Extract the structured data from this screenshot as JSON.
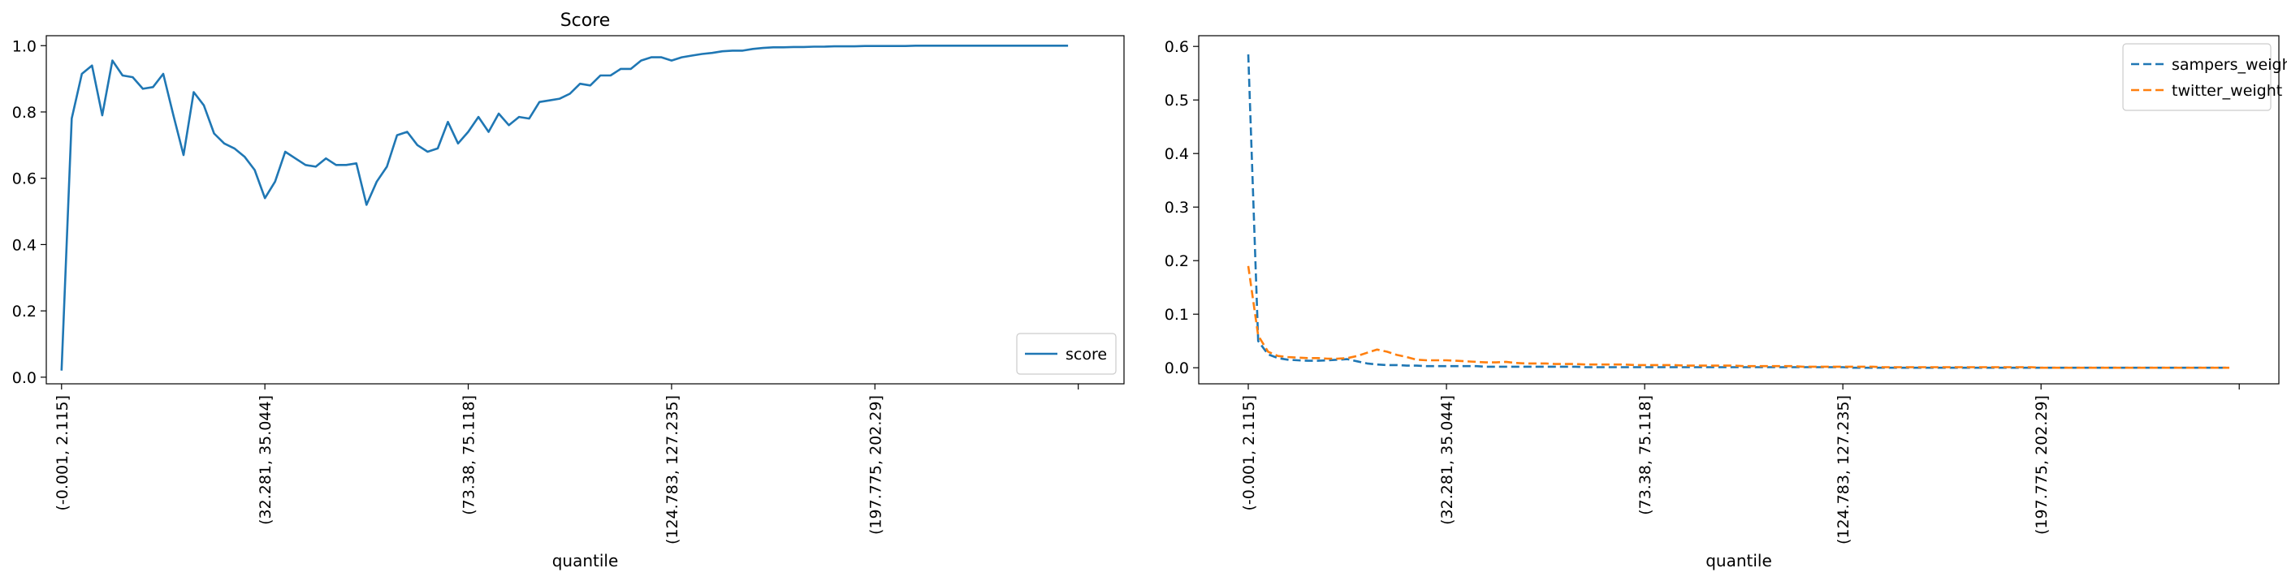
{
  "chart_data": [
    {
      "type": "line",
      "title": "Score",
      "xlabel": "quantile",
      "ylabel": "",
      "ylim": [
        -0.02,
        1.03
      ],
      "yticks": [
        0.0,
        0.2,
        0.4,
        0.6,
        0.8,
        1.0
      ],
      "ytick_labels": [
        "0.0",
        "0.2",
        "0.4",
        "0.6",
        "0.8",
        "1.0"
      ],
      "xtick_labels": [
        "(-0.001, 2.115]",
        "(32.281, 35.044]",
        "(73.38, 75.118]",
        "(124.783, 127.235]",
        "(197.775, 202.29]",
        ""
      ],
      "xtick_positions": [
        0,
        20,
        40,
        60,
        80,
        100
      ],
      "x_range": [
        -1.5,
        104.5
      ],
      "legend": "lower-right",
      "series": [
        {
          "name": "score",
          "style": "solid",
          "color": "#1f77b4",
          "values": [
            0.02,
            0.78,
            0.915,
            0.94,
            0.79,
            0.955,
            0.91,
            0.905,
            0.87,
            0.875,
            0.915,
            0.79,
            0.67,
            0.86,
            0.82,
            0.735,
            0.705,
            0.69,
            0.665,
            0.625,
            0.54,
            0.59,
            0.68,
            0.66,
            0.64,
            0.635,
            0.66,
            0.64,
            0.64,
            0.645,
            0.52,
            0.59,
            0.635,
            0.73,
            0.74,
            0.7,
            0.68,
            0.69,
            0.77,
            0.705,
            0.74,
            0.785,
            0.74,
            0.795,
            0.76,
            0.785,
            0.78,
            0.83,
            0.835,
            0.84,
            0.855,
            0.885,
            0.88,
            0.91,
            0.91,
            0.93,
            0.93,
            0.955,
            0.965,
            0.965,
            0.955,
            0.965,
            0.97,
            0.975,
            0.978,
            0.983,
            0.985,
            0.985,
            0.99,
            0.993,
            0.995,
            0.995,
            0.996,
            0.996,
            0.997,
            0.997,
            0.998,
            0.998,
            0.998,
            0.999,
            0.999,
            0.999,
            0.999,
            0.999,
            1.0,
            1.0,
            1.0,
            1.0,
            1.0,
            1.0,
            1.0,
            1.0,
            1.0,
            1.0,
            1.0,
            1.0,
            1.0,
            1.0,
            1.0,
            1.0
          ]
        }
      ]
    },
    {
      "type": "line",
      "title": "",
      "xlabel": "quantile",
      "ylabel": "",
      "ylim": [
        -0.03,
        0.62
      ],
      "yticks": [
        0.0,
        0.1,
        0.2,
        0.3,
        0.4,
        0.5,
        0.6
      ],
      "ytick_labels": [
        "0.0",
        "0.1",
        "0.2",
        "0.3",
        "0.4",
        "0.5",
        "0.6"
      ],
      "xtick_labels": [
        "(-0.001, 2.115]",
        "(32.281, 35.044]",
        "(73.38, 75.118]",
        "(124.783, 127.235]",
        "(197.775, 202.29]",
        ""
      ],
      "xtick_positions": [
        0,
        20,
        40,
        60,
        80,
        100
      ],
      "x_range": [
        -5,
        104
      ],
      "legend": "top-right",
      "series": [
        {
          "name": "sampers_weight",
          "style": "dashed",
          "color": "#1f77b4",
          "values": [
            0.585,
            0.05,
            0.025,
            0.018,
            0.015,
            0.014,
            0.013,
            0.013,
            0.014,
            0.015,
            0.016,
            0.012,
            0.008,
            0.006,
            0.005,
            0.005,
            0.004,
            0.004,
            0.003,
            0.003,
            0.003,
            0.003,
            0.003,
            0.003,
            0.002,
            0.002,
            0.002,
            0.002,
            0.002,
            0.002,
            0.002,
            0.002,
            0.002,
            0.002,
            0.001,
            0.001,
            0.001,
            0.001,
            0.001,
            0.001,
            0.001,
            0.001,
            0.001,
            0.001,
            0.001,
            0.001,
            0.001,
            0.001,
            0.001,
            0.001,
            0.001,
            0.001,
            0.001,
            0.001,
            0.001,
            0.001,
            0.001,
            0.001,
            0.001,
            0.001,
            0.001,
            0.0,
            0.0,
            0.0,
            0.0,
            0.0,
            0.0,
            0.0,
            0.0,
            0.0,
            0.0,
            0.0,
            0.0,
            0.0,
            0.0,
            0.0,
            0.0,
            0.0,
            0.0,
            0.0,
            0.0,
            0.0,
            0.0,
            0.0,
            0.0,
            0.0,
            0.0,
            0.0,
            0.0,
            0.0,
            0.0,
            0.0,
            0.0,
            0.0,
            0.0,
            0.0,
            0.0,
            0.0,
            0.0,
            0.0
          ]
        },
        {
          "name": "twitter_weight",
          "style": "dashed",
          "color": "#ff7f0e",
          "values": [
            0.19,
            0.06,
            0.03,
            0.022,
            0.02,
            0.019,
            0.018,
            0.018,
            0.017,
            0.017,
            0.018,
            0.022,
            0.028,
            0.034,
            0.03,
            0.024,
            0.02,
            0.015,
            0.014,
            0.014,
            0.014,
            0.013,
            0.012,
            0.011,
            0.01,
            0.01,
            0.011,
            0.009,
            0.008,
            0.008,
            0.008,
            0.007,
            0.007,
            0.007,
            0.006,
            0.006,
            0.006,
            0.006,
            0.006,
            0.005,
            0.005,
            0.005,
            0.005,
            0.005,
            0.004,
            0.004,
            0.004,
            0.004,
            0.004,
            0.004,
            0.003,
            0.003,
            0.003,
            0.003,
            0.003,
            0.003,
            0.002,
            0.002,
            0.002,
            0.002,
            0.002,
            0.002,
            0.002,
            0.002,
            0.001,
            0.001,
            0.001,
            0.001,
            0.001,
            0.001,
            0.001,
            0.001,
            0.001,
            0.001,
            0.001,
            0.001,
            0.001,
            0.001,
            0.001,
            0.001,
            0.0,
            0.0,
            0.0,
            0.0,
            0.0,
            0.0,
            0.0,
            0.0,
            0.0,
            0.0,
            0.0,
            0.0,
            0.0,
            0.0,
            0.0,
            0.0,
            0.0,
            0.0,
            0.0,
            0.0
          ]
        }
      ]
    }
  ]
}
